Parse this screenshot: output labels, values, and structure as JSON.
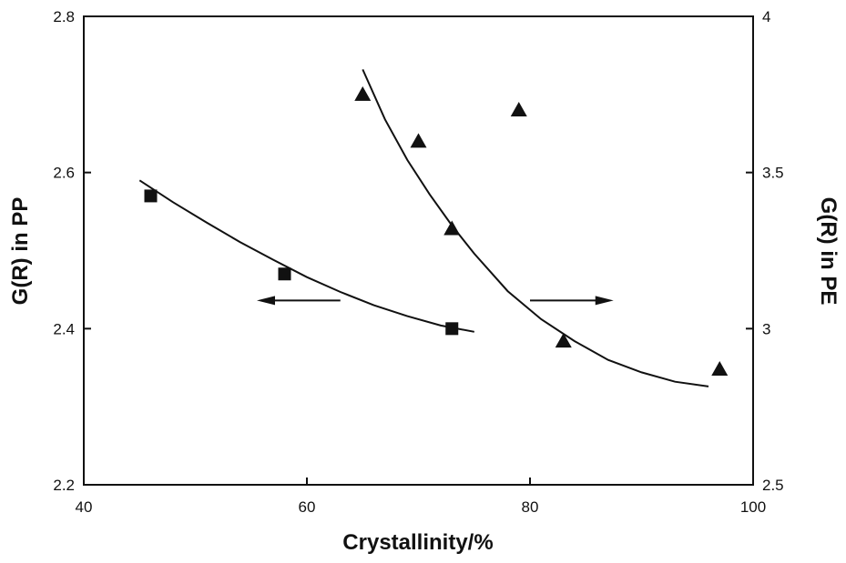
{
  "chart_data": {
    "type": "scatter",
    "title": "",
    "xlabel": "Crystallinity/%",
    "ylabel_left": "G(R) in PP",
    "ylabel_right": "G(R) in PE",
    "xlim": [
      40,
      100
    ],
    "ylim_left": [
      2.2,
      2.8
    ],
    "ylim_right": [
      2.5,
      4.0
    ],
    "x_ticks": [
      "40",
      "60",
      "80",
      "100"
    ],
    "y_left_ticks": [
      "2.2",
      "2.4",
      "2.6",
      "2.8"
    ],
    "y_right_ticks": [
      "2.5",
      "3",
      "3.5",
      "4"
    ],
    "grid": false,
    "legend": "none",
    "series": [
      {
        "axis": "left",
        "marker": "square",
        "points": [
          {
            "x": 46,
            "y": 2.57
          },
          {
            "x": 58,
            "y": 2.47
          },
          {
            "x": 73,
            "y": 2.4
          }
        ],
        "fit": [
          {
            "x": 45,
            "y": 2.59
          },
          {
            "x": 48,
            "y": 2.562
          },
          {
            "x": 51,
            "y": 2.536
          },
          {
            "x": 54,
            "y": 2.511
          },
          {
            "x": 57,
            "y": 2.488
          },
          {
            "x": 60,
            "y": 2.466
          },
          {
            "x": 63,
            "y": 2.447
          },
          {
            "x": 66,
            "y": 2.43
          },
          {
            "x": 69,
            "y": 2.416
          },
          {
            "x": 72,
            "y": 2.404
          },
          {
            "x": 75,
            "y": 2.396
          }
        ],
        "arrow": {
          "from": 63,
          "to": 56,
          "y": 2.436
        }
      },
      {
        "axis": "right",
        "marker": "triangle",
        "points": [
          {
            "x": 65,
            "y": 3.75
          },
          {
            "x": 70,
            "y": 3.6
          },
          {
            "x": 73,
            "y": 3.32
          },
          {
            "x": 79,
            "y": 3.7
          },
          {
            "x": 83,
            "y": 2.96
          },
          {
            "x": 97,
            "y": 2.87
          }
        ],
        "fit": [
          {
            "x": 65,
            "y": 3.83
          },
          {
            "x": 67,
            "y": 3.67
          },
          {
            "x": 69,
            "y": 3.54
          },
          {
            "x": 71,
            "y": 3.43
          },
          {
            "x": 73,
            "y": 3.33
          },
          {
            "x": 75,
            "y": 3.24
          },
          {
            "x": 78,
            "y": 3.12
          },
          {
            "x": 81,
            "y": 3.03
          },
          {
            "x": 84,
            "y": 2.96
          },
          {
            "x": 87,
            "y": 2.9
          },
          {
            "x": 90,
            "y": 2.86
          },
          {
            "x": 93,
            "y": 2.83
          },
          {
            "x": 96,
            "y": 2.815
          }
        ],
        "arrow": {
          "from": 80,
          "to": 87,
          "y": 3.09
        }
      }
    ]
  }
}
